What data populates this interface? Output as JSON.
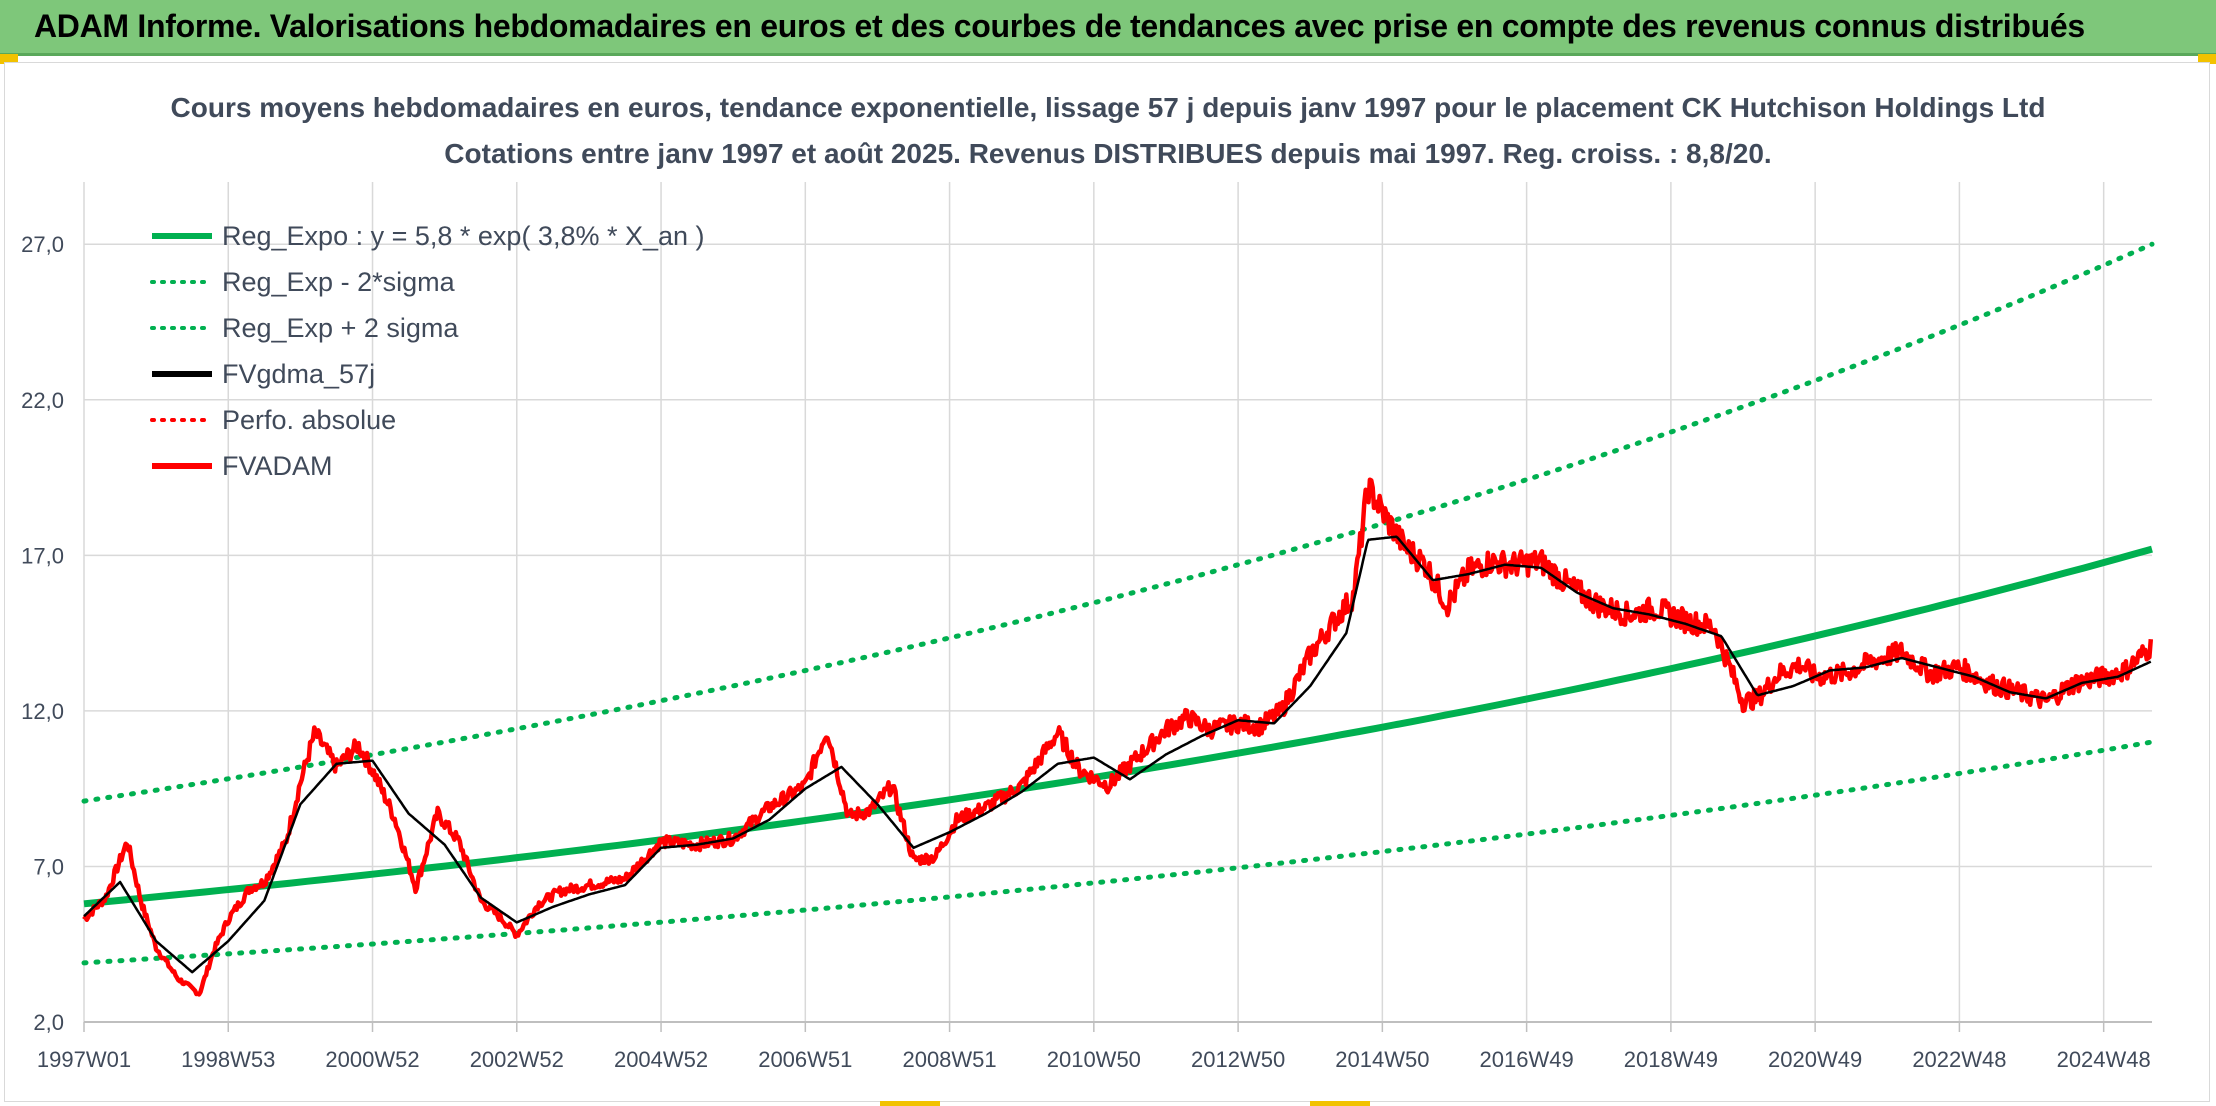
{
  "header": {
    "banner_title": "ADAM Informe. Valorisations hebdomadaires en euros et des courbes de tendances avec prise en compte des revenus connus distribués"
  },
  "colors": {
    "banner": "#7ec77a",
    "reg_expo": "#00b050",
    "fvgdma": "#000000",
    "fvadam": "#ff0000",
    "grid": "#d9d9d9"
  },
  "chart_data": {
    "type": "line",
    "title": "Cours moyens hebdomadaires en euros, tendance exponentielle, lissage 57 j depuis janv 1997 pour le placement CK Hutchison Holdings Ltd",
    "subtitle": "Cotations entre janv 1997 et août 2025. Revenus DISTRIBUES depuis mai 1997. Reg. croiss. : 8,8/20.",
    "ylim": [
      2.0,
      29.0
    ],
    "yticks": [
      "2,0",
      "7,0",
      "12,0",
      "17,0",
      "22,0",
      "27,0"
    ],
    "ytick_values": [
      2.0,
      7.0,
      12.0,
      17.0,
      22.0,
      27.0
    ],
    "xticks": [
      "1997W01",
      "1998W53",
      "2000W52",
      "2002W52",
      "2004W52",
      "2006W51",
      "2008W51",
      "2010W50",
      "2012W50",
      "2014W50",
      "2016W49",
      "2018W49",
      "2020W49",
      "2022W48",
      "2024W48"
    ],
    "xtick_years": [
      1997.0,
      1999.0,
      2001.0,
      2003.0,
      2005.0,
      2007.0,
      2009.0,
      2011.0,
      2013.0,
      2015.0,
      2017.0,
      2019.0,
      2021.0,
      2023.0,
      2025.0
    ],
    "xlim": [
      1997.0,
      2025.67
    ],
    "grid": true,
    "legend_position": "top-left",
    "legend": [
      {
        "name": "Reg_Expo : y = 5,8 * exp( 3,8% *  X_an )",
        "style": "solid",
        "color": "#00b050"
      },
      {
        "name": "Reg_Exp - 2*sigma",
        "style": "dotted",
        "color": "#00b050"
      },
      {
        "name": "Reg_Exp + 2 sigma",
        "style": "dotted",
        "color": "#00b050"
      },
      {
        "name": "FVgdma_57j",
        "style": "solid",
        "color": "#000000"
      },
      {
        "name": "Perfo. absolue",
        "style": "dotted",
        "color": "#ff0000"
      },
      {
        "name": "FVADAM",
        "style": "solid",
        "color": "#ff0000"
      }
    ],
    "series": [
      {
        "name": "Reg_Expo : y = 5,8 * exp( 3,8% *  X_an )",
        "x": [
          1997.0,
          2001.0,
          2005.0,
          2009.0,
          2013.0,
          2017.0,
          2021.0,
          2025.67
        ],
        "y": [
          5.8,
          6.7,
          7.9,
          9.2,
          10.7,
          12.5,
          14.6,
          17.2
        ]
      },
      {
        "name": "Reg_Exp - 2*sigma",
        "x": [
          1997.0,
          2001.0,
          2005.0,
          2009.0,
          2013.0,
          2017.0,
          2021.0,
          2025.67
        ],
        "y": [
          3.9,
          4.5,
          5.3,
          6.2,
          7.2,
          8.4,
          9.8,
          11.0
        ]
      },
      {
        "name": "Reg_Exp + 2 sigma",
        "x": [
          1997.0,
          2001.0,
          2005.0,
          2009.0,
          2013.0,
          2017.0,
          2021.0,
          2025.67
        ],
        "y": [
          9.1,
          10.6,
          12.4,
          14.5,
          16.9,
          19.7,
          22.9,
          27.0
        ]
      },
      {
        "name": "FVADAM",
        "x": [
          1997.0,
          1997.3,
          1997.6,
          1997.8,
          1998.0,
          1998.3,
          1998.6,
          1998.8,
          1999.0,
          1999.3,
          1999.5,
          1999.8,
          2000.0,
          2000.2,
          2000.5,
          2000.8,
          2001.0,
          2001.3,
          2001.6,
          2001.9,
          2002.2,
          2002.5,
          2002.8,
          2003.0,
          2003.3,
          2003.6,
          2004.0,
          2004.5,
          2005.0,
          2005.5,
          2006.0,
          2006.5,
          2007.0,
          2007.3,
          2007.6,
          2007.9,
          2008.2,
          2008.5,
          2008.8,
          2009.1,
          2009.5,
          2010.0,
          2010.5,
          2010.8,
          2011.2,
          2011.6,
          2012.0,
          2012.3,
          2012.6,
          2013.0,
          2013.3,
          2013.6,
          2014.0,
          2014.3,
          2014.6,
          2014.8,
          2015.0,
          2015.3,
          2015.6,
          2015.9,
          2016.2,
          2016.5,
          2016.8,
          2017.2,
          2017.6,
          2018.0,
          2018.4,
          2018.8,
          2019.2,
          2019.6,
          2020.0,
          2020.2,
          2020.5,
          2020.8,
          2021.0,
          2021.4,
          2021.8,
          2022.2,
          2022.6,
          2023.0,
          2023.4,
          2023.8,
          2024.2,
          2024.6,
          2025.0,
          2025.3,
          2025.67
        ],
        "y": [
          5.3,
          6.0,
          7.8,
          5.8,
          4.4,
          3.4,
          2.9,
          4.3,
          5.3,
          6.3,
          6.5,
          7.8,
          9.7,
          11.3,
          10.2,
          10.9,
          10.1,
          8.6,
          6.3,
          8.7,
          7.8,
          5.9,
          5.3,
          4.8,
          5.8,
          6.2,
          6.4,
          6.6,
          7.8,
          7.7,
          7.9,
          8.9,
          9.6,
          11.4,
          8.6,
          8.8,
          9.6,
          7.2,
          7.3,
          8.5,
          8.9,
          9.6,
          11.3,
          10.1,
          9.6,
          10.5,
          11.4,
          11.8,
          11.4,
          11.6,
          11.5,
          12.0,
          13.8,
          14.8,
          15.7,
          19.2,
          18.4,
          17.3,
          16.7,
          15.4,
          16.5,
          16.8,
          16.7,
          16.8,
          16.0,
          15.4,
          15.1,
          15.3,
          14.9,
          14.7,
          12.3,
          12.4,
          13.2,
          13.5,
          13.1,
          13.2,
          13.6,
          13.9,
          13.2,
          13.4,
          12.9,
          12.6,
          12.3,
          12.9,
          13.1,
          13.3,
          14.1
        ]
      },
      {
        "name": "FVgdma_57j",
        "x": [
          1997.0,
          1997.5,
          1998.0,
          1998.5,
          1999.0,
          1999.5,
          2000.0,
          2000.5,
          2001.0,
          2001.5,
          2002.0,
          2002.5,
          2003.0,
          2003.5,
          2004.0,
          2004.5,
          2005.0,
          2005.5,
          2006.0,
          2006.5,
          2007.0,
          2007.5,
          2008.0,
          2008.5,
          2009.0,
          2009.5,
          2010.0,
          2010.5,
          2011.0,
          2011.5,
          2012.0,
          2012.5,
          2013.0,
          2013.5,
          2014.0,
          2014.5,
          2014.8,
          2015.2,
          2015.7,
          2016.2,
          2016.7,
          2017.2,
          2017.7,
          2018.2,
          2018.7,
          2019.2,
          2019.7,
          2020.2,
          2020.7,
          2021.2,
          2021.7,
          2022.2,
          2022.7,
          2023.2,
          2023.7,
          2024.2,
          2024.7,
          2025.2,
          2025.67
        ],
        "y": [
          5.4,
          6.5,
          4.6,
          3.6,
          4.6,
          5.9,
          9.0,
          10.3,
          10.4,
          8.7,
          7.7,
          6.0,
          5.2,
          5.7,
          6.1,
          6.4,
          7.6,
          7.7,
          7.9,
          8.5,
          9.5,
          10.2,
          9.0,
          7.6,
          8.1,
          8.7,
          9.4,
          10.3,
          10.5,
          9.8,
          10.6,
          11.2,
          11.7,
          11.6,
          12.8,
          14.5,
          17.5,
          17.6,
          16.2,
          16.4,
          16.7,
          16.6,
          15.8,
          15.3,
          15.1,
          14.8,
          14.4,
          12.5,
          12.8,
          13.3,
          13.4,
          13.7,
          13.4,
          13.1,
          12.6,
          12.4,
          12.9,
          13.1,
          13.6
        ]
      }
    ]
  }
}
